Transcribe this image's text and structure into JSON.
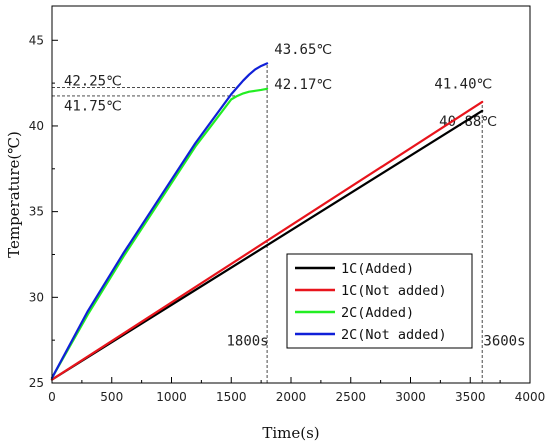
{
  "chart_data": {
    "type": "line",
    "xlabel": "Time(s)",
    "ylabel": "Temperature(℃)",
    "xlim": [
      0,
      4000
    ],
    "ylim": [
      25,
      47
    ],
    "xticks": [
      0,
      500,
      1000,
      1500,
      2000,
      2500,
      3000,
      3500,
      4000
    ],
    "yticks": [
      25,
      30,
      35,
      40,
      45
    ],
    "grid": false,
    "legend_position": "lower-right",
    "series": [
      {
        "name": "1C(Added)",
        "color": "#000000",
        "x": [
          0,
          3600
        ],
        "y": [
          25.2,
          40.88
        ]
      },
      {
        "name": "1C(Not added)",
        "color": "#e8141c",
        "x": [
          0,
          3600
        ],
        "y": [
          25.2,
          41.4
        ]
      },
      {
        "name": "2C(Added)",
        "color": "#22ee22",
        "x": [
          0,
          300,
          600,
          900,
          1200,
          1500,
          1550,
          1600,
          1650,
          1700,
          1750,
          1800
        ],
        "y": [
          25.3,
          29.0,
          32.4,
          35.6,
          38.8,
          41.55,
          41.75,
          41.9,
          42.0,
          42.05,
          42.1,
          42.17
        ]
      },
      {
        "name": "2C(Not added)",
        "color": "#1020d8",
        "x": [
          0,
          300,
          600,
          900,
          1200,
          1500,
          1550,
          1600,
          1650,
          1700,
          1750,
          1800
        ],
        "y": [
          25.3,
          29.2,
          32.6,
          35.8,
          39.0,
          41.85,
          42.25,
          42.65,
          43.0,
          43.3,
          43.5,
          43.65
        ]
      }
    ],
    "annotations": [
      {
        "text": "42.25℃",
        "x": 100,
        "y": 42.35
      },
      {
        "text": "41.75℃",
        "x": 100,
        "y": 40.9
      },
      {
        "text": "43.65℃",
        "x": 1860,
        "y": 44.2
      },
      {
        "text": "42.17℃",
        "x": 1860,
        "y": 42.15
      },
      {
        "text": "41.40℃",
        "x": 3200,
        "y": 42.2
      },
      {
        "text": "40.88℃",
        "x": 3240,
        "y": 40.0
      },
      {
        "text": "1800s",
        "x": 1460,
        "y": 27.2
      },
      {
        "text": "3600s",
        "x": 3610,
        "y": 27.2
      }
    ],
    "reference_lines": [
      {
        "kind": "hline",
        "y": 42.25,
        "x_from": 0,
        "x_to": 1550
      },
      {
        "kind": "hline",
        "y": 41.75,
        "x_from": 0,
        "x_to": 1550
      },
      {
        "kind": "vline",
        "x": 1800,
        "y_from": 25,
        "y_to": 43.65
      },
      {
        "kind": "vline",
        "x": 3600,
        "y_from": 25,
        "y_to": 41.4
      }
    ]
  }
}
